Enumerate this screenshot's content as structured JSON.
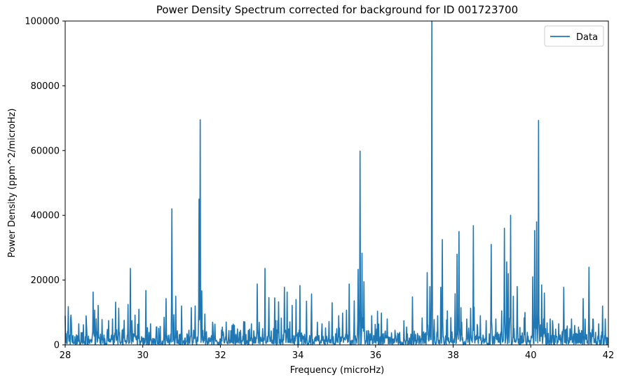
{
  "chart_data": {
    "type": "line",
    "title": "Power Density Spectrum corrected for background for ID 001723700",
    "xlabel": "Frequency (microHz)",
    "ylabel": "Power Density (ppm^2/microHz)",
    "xlim": [
      28,
      42
    ],
    "ylim": [
      0,
      100000
    ],
    "xticks": [
      28,
      30,
      32,
      34,
      36,
      38,
      40,
      42
    ],
    "yticks": [
      0,
      20000,
      40000,
      60000,
      80000,
      100000
    ],
    "grid": false,
    "legend_position": "top-right",
    "line_color": "#1f77b4",
    "series": [
      {
        "name": "Data",
        "peaks": [
          [
            28.08,
            11800
          ],
          [
            28.15,
            9200
          ],
          [
            28.35,
            6500
          ],
          [
            28.47,
            6200
          ],
          [
            28.72,
            16300
          ],
          [
            28.85,
            12200
          ],
          [
            28.95,
            7800
          ],
          [
            29.12,
            7500
          ],
          [
            29.22,
            8000
          ],
          [
            29.3,
            13200
          ],
          [
            29.38,
            11300
          ],
          [
            29.52,
            7600
          ],
          [
            29.62,
            12500
          ],
          [
            29.68,
            23600
          ],
          [
            29.8,
            9200
          ],
          [
            29.9,
            11000
          ],
          [
            30.08,
            16800
          ],
          [
            30.2,
            6500
          ],
          [
            30.35,
            5500
          ],
          [
            30.55,
            8500
          ],
          [
            30.6,
            14300
          ],
          [
            30.75,
            42000
          ],
          [
            30.8,
            9300
          ],
          [
            30.85,
            15000
          ],
          [
            31.0,
            12000
          ],
          [
            31.25,
            11500
          ],
          [
            31.35,
            12000
          ],
          [
            31.45,
            45000
          ],
          [
            31.48,
            69500
          ],
          [
            31.52,
            16700
          ],
          [
            31.6,
            9500
          ],
          [
            31.8,
            7000
          ],
          [
            32.05,
            5500
          ],
          [
            32.3,
            6000
          ],
          [
            32.6,
            7200
          ],
          [
            32.8,
            6500
          ],
          [
            32.95,
            18800
          ],
          [
            33.15,
            23600
          ],
          [
            33.25,
            14600
          ],
          [
            33.4,
            14500
          ],
          [
            33.5,
            13300
          ],
          [
            33.65,
            17800
          ],
          [
            33.72,
            16300
          ],
          [
            33.85,
            12200
          ],
          [
            33.95,
            14000
          ],
          [
            34.05,
            18300
          ],
          [
            34.22,
            13500
          ],
          [
            34.35,
            15700
          ],
          [
            34.5,
            7000
          ],
          [
            34.62,
            6500
          ],
          [
            34.8,
            7200
          ],
          [
            34.88,
            13000
          ],
          [
            35.05,
            9000
          ],
          [
            35.15,
            9800
          ],
          [
            35.25,
            10700
          ],
          [
            35.32,
            18800
          ],
          [
            35.45,
            13600
          ],
          [
            35.55,
            23300
          ],
          [
            35.6,
            59800
          ],
          [
            35.65,
            28300
          ],
          [
            35.7,
            19500
          ],
          [
            35.9,
            9000
          ],
          [
            36.05,
            10400
          ],
          [
            36.15,
            9800
          ],
          [
            36.3,
            8000
          ],
          [
            36.5,
            4500
          ],
          [
            36.8,
            5500
          ],
          [
            36.95,
            14800
          ],
          [
            37.2,
            8300
          ],
          [
            37.33,
            22300
          ],
          [
            37.4,
            18000
          ],
          [
            37.45,
            100000
          ],
          [
            37.6,
            9000
          ],
          [
            37.68,
            17800
          ],
          [
            37.72,
            32500
          ],
          [
            37.85,
            10500
          ],
          [
            38.05,
            15800
          ],
          [
            38.1,
            28000
          ],
          [
            38.15,
            35000
          ],
          [
            38.2,
            11500
          ],
          [
            38.35,
            8000
          ],
          [
            38.45,
            11300
          ],
          [
            38.52,
            36800
          ],
          [
            38.7,
            9000
          ],
          [
            38.85,
            7500
          ],
          [
            38.98,
            31000
          ],
          [
            39.1,
            8000
          ],
          [
            39.25,
            10500
          ],
          [
            39.32,
            36000
          ],
          [
            39.38,
            25600
          ],
          [
            39.42,
            22000
          ],
          [
            39.48,
            40000
          ],
          [
            39.55,
            15000
          ],
          [
            39.65,
            18000
          ],
          [
            39.85,
            10000
          ],
          [
            40.05,
            21000
          ],
          [
            40.1,
            35300
          ],
          [
            40.15,
            38000
          ],
          [
            40.2,
            69300
          ],
          [
            40.28,
            18500
          ],
          [
            40.35,
            16000
          ],
          [
            40.5,
            8000
          ],
          [
            40.72,
            6500
          ],
          [
            40.85,
            17800
          ],
          [
            41.05,
            8000
          ],
          [
            41.25,
            4500
          ],
          [
            41.35,
            14300
          ],
          [
            41.5,
            24000
          ],
          [
            41.6,
            8000
          ],
          [
            41.75,
            6500
          ],
          [
            41.85,
            12000
          ],
          [
            41.92,
            8000
          ]
        ]
      }
    ]
  }
}
